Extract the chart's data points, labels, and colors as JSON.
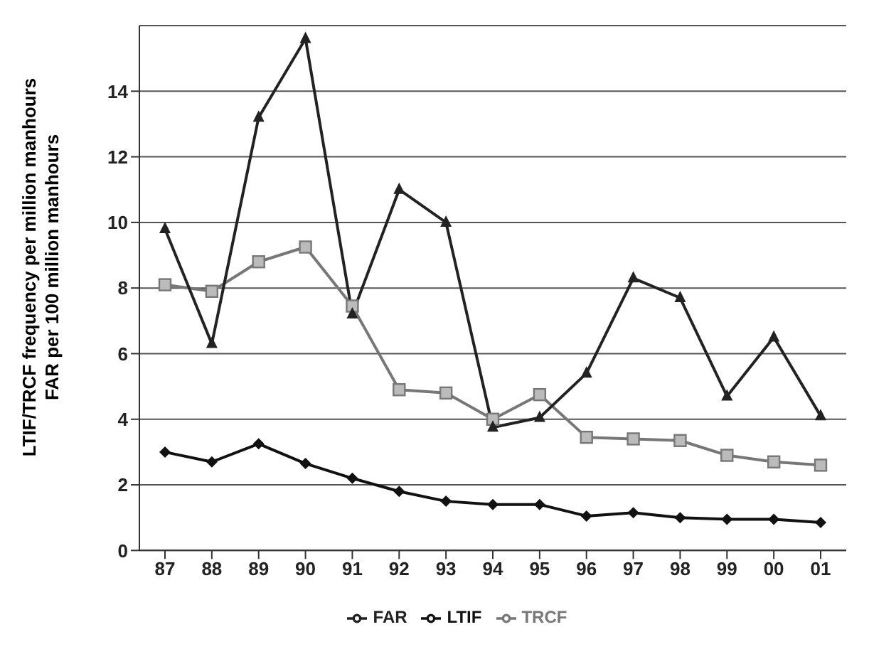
{
  "chart_data": {
    "type": "line",
    "ylabel": "LTIF/TRCF frequency per million manhours\nFAR per 100 million manhours",
    "categories": [
      "87",
      "88",
      "89",
      "90",
      "91",
      "92",
      "93",
      "94",
      "95",
      "96",
      "97",
      "98",
      "99",
      "00",
      "01"
    ],
    "series": [
      {
        "name": "LTIF",
        "color": "#111111",
        "marker": "diamond",
        "values": [
          3.0,
          2.7,
          3.25,
          2.65,
          2.2,
          1.8,
          1.5,
          1.4,
          1.4,
          1.05,
          1.15,
          1.0,
          0.95,
          0.95,
          0.85
        ]
      },
      {
        "name": "TRCF",
        "color": "#777777",
        "marker": "square",
        "values": [
          8.1,
          7.9,
          8.8,
          9.25,
          7.45,
          4.9,
          4.8,
          4.0,
          4.75,
          3.45,
          3.4,
          3.35,
          2.9,
          2.7,
          2.6
        ]
      },
      {
        "name": "FAR",
        "color": "#222222",
        "marker": "triangle",
        "values": [
          9.8,
          6.3,
          13.2,
          15.6,
          7.2,
          11.0,
          10.0,
          3.75,
          4.05,
          5.4,
          8.3,
          7.7,
          4.7,
          6.5,
          4.1
        ]
      }
    ],
    "ylim": [
      0,
      16
    ],
    "yticks": [
      0,
      2,
      4,
      6,
      8,
      10,
      12,
      14
    ],
    "grid": "y",
    "legend": "bottom"
  }
}
